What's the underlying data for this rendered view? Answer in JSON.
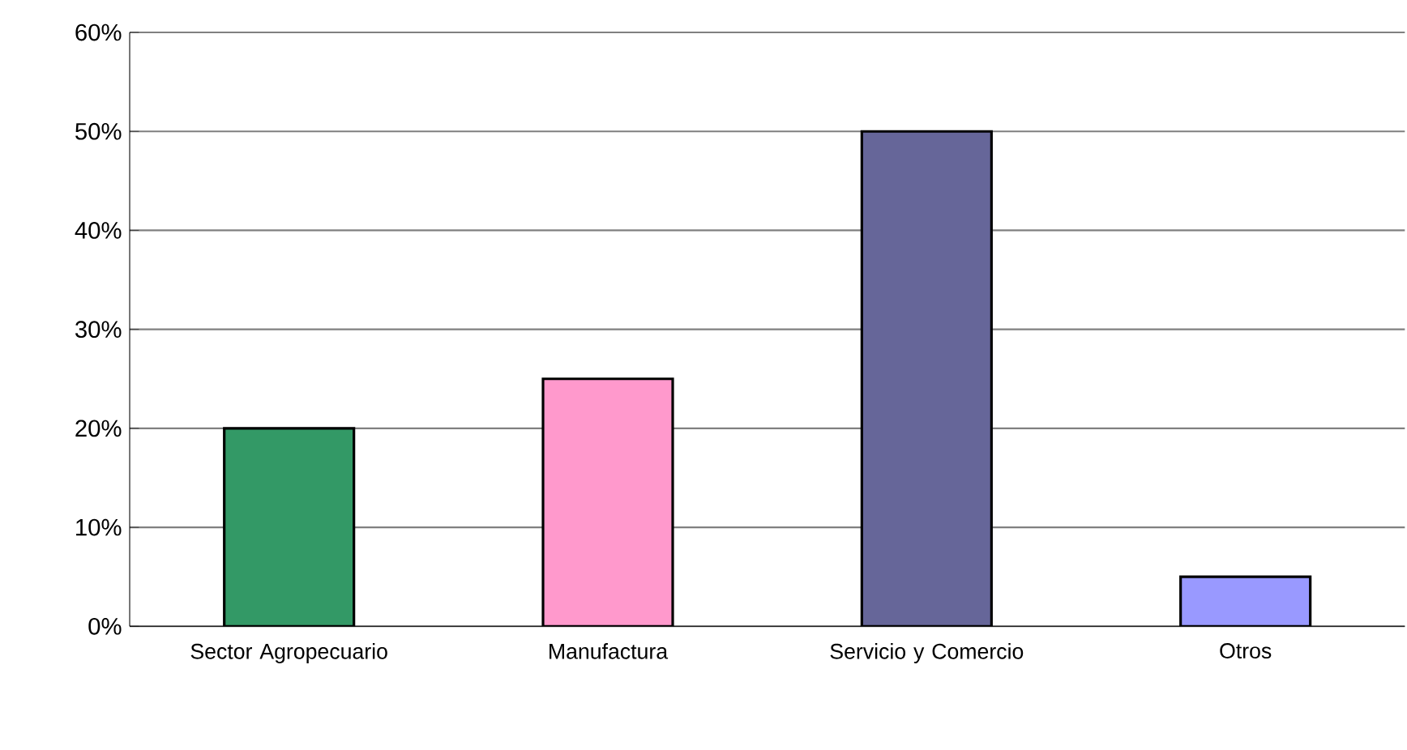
{
  "chart_data": {
    "type": "bar",
    "categories": [
      "Sector Agropecuario",
      "Manufactura",
      "Servicio y Comercio",
      "Otros"
    ],
    "values": [
      20,
      25,
      50,
      5
    ],
    "colors": [
      "#339966",
      "#ff99cc",
      "#666699",
      "#9999ff"
    ],
    "ylim": [
      0,
      60
    ],
    "yticks": [
      {
        "value": 0,
        "label": "0%"
      },
      {
        "value": 10,
        "label": "10%"
      },
      {
        "value": 20,
        "label": "20%"
      },
      {
        "value": 30,
        "label": "30%"
      },
      {
        "value": 40,
        "label": "40%"
      },
      {
        "value": 50,
        "label": "50%"
      },
      {
        "value": 60,
        "label": "60%"
      }
    ],
    "grid": "y"
  }
}
